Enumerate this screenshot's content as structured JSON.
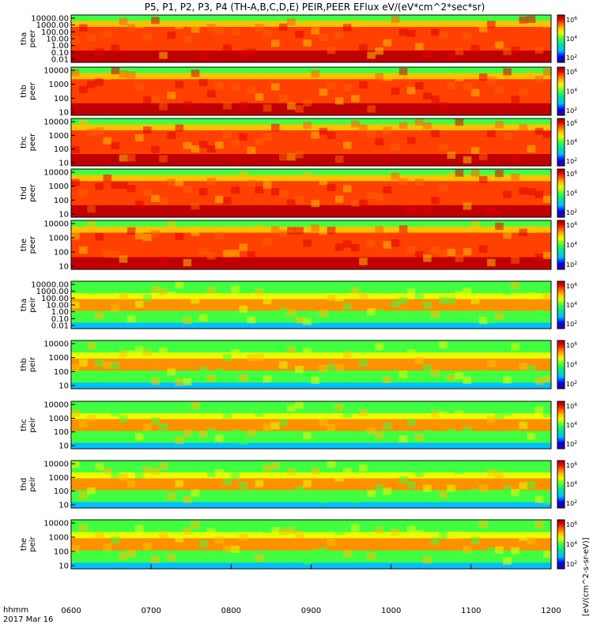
{
  "chart_data": {
    "type": "heatmap",
    "title": "P5, P1, P2, P3, P4 (TH-A,B,C,D,E) PEIR,PEER EFlux eV/(eV*cm^2*sec*sr)",
    "x_ticks": [
      "0600",
      "0700",
      "0800",
      "0900",
      "1000",
      "1100",
      "1200"
    ],
    "x_range_hhmm": [
      "0600",
      "1200"
    ],
    "x_axis_label": "hhmm",
    "date_label": "2017 Mar 16",
    "colorbar_label": "[eV/(cm^2-s-sr-eV)]",
    "colorbar_ticks": [
      "10^2",
      "10^4",
      "10^6"
    ],
    "colorbar_colors": [
      "#3a0080",
      "#0000ff",
      "#00c0ff",
      "#00e0a0",
      "#40ff40",
      "#e8ff00",
      "#ffc000",
      "#ff6000",
      "#e00000",
      "#a00000"
    ],
    "panels": [
      {
        "probe": "tha",
        "instrument": "peer",
        "y_ticks": [
          "10000.00",
          "1000.00",
          "100.00",
          "10.00",
          "1.00",
          "0.10",
          "0.01"
        ]
      },
      {
        "probe": "thb",
        "instrument": "peer",
        "y_ticks": [
          "10000",
          "1000",
          "100",
          "10"
        ]
      },
      {
        "probe": "thc",
        "instrument": "peer",
        "y_ticks": [
          "10000",
          "1000",
          "100",
          "10"
        ]
      },
      {
        "probe": "thd",
        "instrument": "peer",
        "y_ticks": [
          "10000",
          "1000",
          "100",
          "10"
        ]
      },
      {
        "probe": "the",
        "instrument": "peer",
        "y_ticks": [
          "10000",
          "1000",
          "100",
          "10"
        ]
      },
      {
        "probe": "tha",
        "instrument": "peir",
        "y_ticks": [
          "10000.00",
          "1000.00",
          "100.00",
          "10.00",
          "1.00",
          "0.10",
          "0.01"
        ]
      },
      {
        "probe": "thb",
        "instrument": "peir",
        "y_ticks": [
          "10000",
          "1000",
          "100",
          "10"
        ]
      },
      {
        "probe": "thc",
        "instrument": "peir",
        "y_ticks": [
          "10000",
          "1000",
          "100",
          "10"
        ]
      },
      {
        "probe": "thd",
        "instrument": "peir",
        "y_ticks": [
          "10000",
          "1000",
          "100",
          "10"
        ]
      },
      {
        "probe": "the",
        "instrument": "peir",
        "y_ticks": [
          "10000",
          "1000",
          "100",
          "10"
        ]
      }
    ]
  }
}
